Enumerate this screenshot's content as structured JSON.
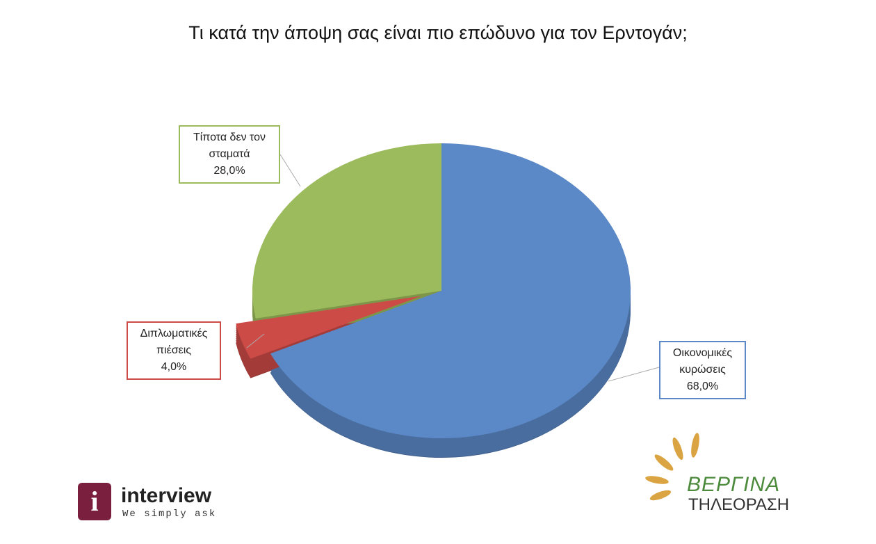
{
  "chart_data": {
    "type": "pie",
    "title": "Τι κατά την άποψη σας είναι πιο επώδυνο για τον Ερντογάν;",
    "categories": [
      "Οικονομικές κυρώσεις",
      "Διπλωματικές πιέσεις",
      "Τίποτα δεν τον σταματά"
    ],
    "values": [
      68,
      4,
      28
    ],
    "value_labels": [
      "68,0%",
      "4,0%",
      "28,0%"
    ],
    "colors": [
      "#5b88c6",
      "#cc4b47",
      "#9cbb5c"
    ],
    "explode": [
      false,
      true,
      false
    ]
  },
  "logos": {
    "interview": "interview",
    "interview_tagline": "We simply ask",
    "vergina": "ΒΕΡΓΙΝΑ",
    "vergina_tagline": "ΤΗΛΕΟΡΑΣΗ"
  }
}
